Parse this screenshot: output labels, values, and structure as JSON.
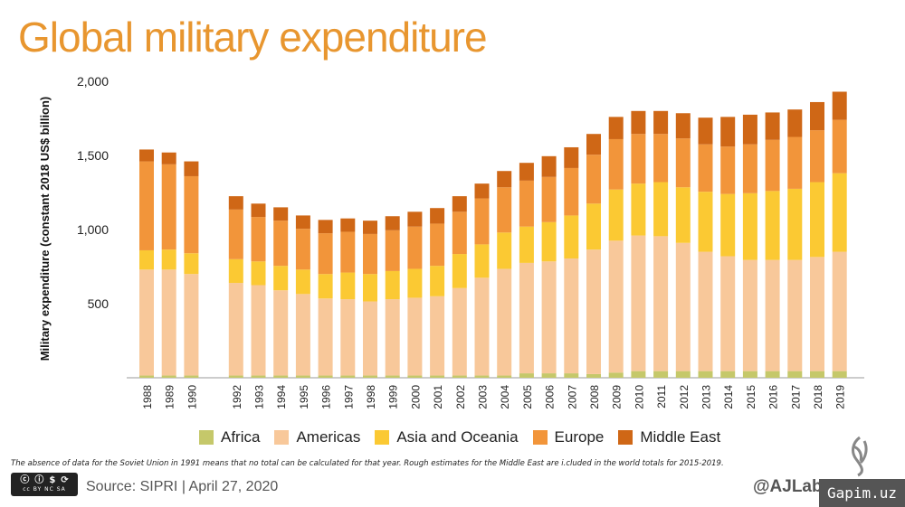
{
  "chart_data": {
    "type": "bar",
    "stacked": true,
    "title": "Global military expenditure",
    "xlabel": "",
    "ylabel": "Military expenditure (constant 2018 US$ billion)",
    "ylim": [
      0,
      2000
    ],
    "yticks": [
      "500",
      "1,000",
      "1,500",
      "2,000"
    ],
    "ytick_values": [
      500,
      1000,
      1500,
      2000
    ],
    "grid": false,
    "legend_position": "bottom",
    "categories": [
      "1988",
      "1989",
      "1990",
      "1992",
      "1993",
      "1994",
      "1995",
      "1996",
      "1997",
      "1998",
      "1999",
      "2000",
      "2001",
      "2002",
      "2003",
      "2004",
      "2005",
      "2006",
      "2007",
      "2008",
      "2009",
      "2010",
      "2011",
      "2012",
      "2013",
      "2014",
      "2015",
      "2016",
      "2017",
      "2018",
      "2019"
    ],
    "series": [
      {
        "name": "Africa",
        "color": "#c5c86a",
        "values": [
          15,
          15,
          15,
          15,
          15,
          15,
          15,
          15,
          15,
          15,
          15,
          15,
          15,
          15,
          15,
          15,
          30,
          30,
          30,
          25,
          35,
          45,
          45,
          45,
          45,
          45,
          45,
          45,
          45,
          45,
          45
        ]
      },
      {
        "name": "Americas",
        "color": "#f8c89a",
        "values": [
          715,
          715,
          685,
          625,
          610,
          575,
          550,
          520,
          515,
          500,
          515,
          525,
          535,
          590,
          660,
          720,
          745,
          755,
          775,
          840,
          890,
          915,
          910,
          865,
          805,
          775,
          750,
          750,
          750,
          770,
          805
        ]
      },
      {
        "name": "Asia and Oceania",
        "color": "#fbc933",
        "values": [
          130,
          135,
          140,
          160,
          160,
          165,
          165,
          165,
          180,
          185,
          190,
          195,
          205,
          230,
          225,
          245,
          245,
          265,
          290,
          310,
          345,
          350,
          365,
          375,
          405,
          420,
          450,
          465,
          480,
          505,
          530
        ]
      },
      {
        "name": "Europe",
        "color": "#f2953a",
        "values": [
          600,
          575,
          520,
          335,
          300,
          305,
          275,
          275,
          275,
          270,
          275,
          285,
          285,
          285,
          310,
          305,
          310,
          305,
          320,
          330,
          340,
          335,
          325,
          330,
          320,
          320,
          330,
          345,
          350,
          350,
          360
        ]
      },
      {
        "name": "Middle East",
        "color": "#cf6716",
        "values": [
          80,
          80,
          100,
          90,
          90,
          90,
          90,
          90,
          90,
          90,
          95,
          100,
          105,
          105,
          100,
          110,
          120,
          140,
          140,
          140,
          150,
          155,
          155,
          170,
          180,
          200,
          200,
          185,
          185,
          190,
          190
        ]
      }
    ]
  },
  "footnote": "The absence of data for the Soviet Union in 1991 means that no total can be calculated for that year. Rough estimates for the Middle East are i.cluded in the world totals for 2015-2019.",
  "source": "Source: SIPRI |  April 27, 2020",
  "license": "cc BY NC SA",
  "handle": "@AJLabs",
  "watermark": "Gapim.uz"
}
